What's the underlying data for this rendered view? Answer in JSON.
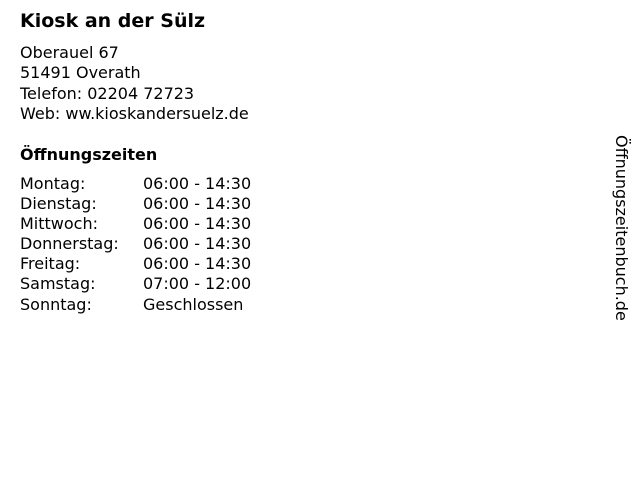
{
  "title": "Kiosk an der Sülz",
  "address": {
    "street": "Oberauel 67",
    "city": "51491 Overath",
    "phone": "Telefon: 02204 72723",
    "web": "Web: ww.kioskandersuelz.de"
  },
  "hours_heading": "Öffnungszeiten",
  "hours": [
    {
      "day": "Montag:",
      "time": "06:00 - 14:30"
    },
    {
      "day": "Dienstag:",
      "time": "06:00 - 14:30"
    },
    {
      "day": "Mittwoch:",
      "time": "06:00 - 14:30"
    },
    {
      "day": "Donnerstag:",
      "time": "06:00 - 14:30"
    },
    {
      "day": "Freitag:",
      "time": "06:00 - 14:30"
    },
    {
      "day": "Samstag:",
      "time": "07:00 - 12:00"
    },
    {
      "day": "Sonntag:",
      "time": "Geschlossen"
    }
  ],
  "side_label": "Öffnungszeitenbuch.de"
}
